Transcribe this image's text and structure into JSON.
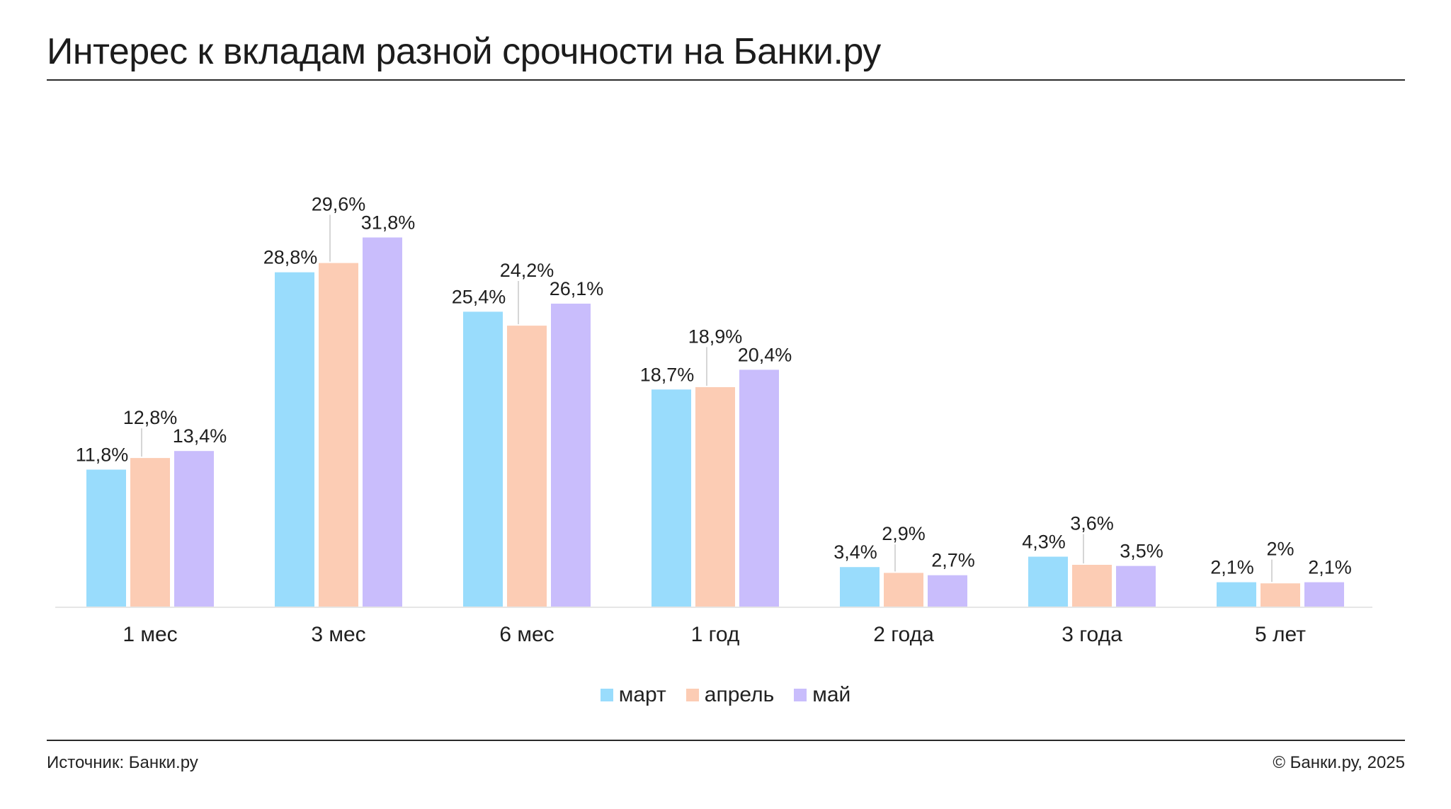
{
  "title": "Интерес к вкладам разной срочности на Банки.ру",
  "footer": {
    "source": "Источник: Банки.ру",
    "copyright": "© Банки.ру, 2025"
  },
  "colors": {
    "март": "#99dcfc",
    "апрель": "#fcccb4",
    "май": "#c9bdfc",
    "text": "#1f1f1f",
    "leader_line": "#c8c8c8",
    "baseline": "#e6e6e6"
  },
  "legend": [
    {
      "label": "март",
      "color": "#99dcfc"
    },
    {
      "label": "апрель",
      "color": "#fcccb4"
    },
    {
      "label": "май",
      "color": "#c9bdfc"
    }
  ],
  "chart_data": {
    "type": "bar",
    "title": "Интерес к вкладам разной срочности на Банки.ру",
    "xlabel": "",
    "ylabel": "",
    "ylim": [
      0,
      35
    ],
    "grid": false,
    "legend_position": "bottom-center",
    "categories": [
      "1 мес",
      "3 мес",
      "6 мес",
      "1 год",
      "2 года",
      "3 года",
      "5 лет"
    ],
    "series": [
      {
        "name": "март",
        "color": "#99dcfc",
        "values": [
          11.8,
          28.8,
          25.4,
          18.7,
          3.4,
          4.3,
          2.1
        ],
        "labels": [
          "11,8%",
          "28,8%",
          "25,4%",
          "18,7%",
          "3,4%",
          "4,3%",
          "2,1%"
        ]
      },
      {
        "name": "апрель",
        "color": "#fcccb4",
        "values": [
          12.8,
          29.6,
          24.2,
          18.9,
          2.9,
          3.6,
          2.0
        ],
        "labels": [
          "12,8%",
          "29,6%",
          "24,2%",
          "18,9%",
          "2,9%",
          "3,6%",
          "2%"
        ]
      },
      {
        "name": "май",
        "color": "#c9bdfc",
        "values": [
          13.4,
          31.8,
          26.1,
          20.4,
          2.7,
          3.5,
          2.1
        ],
        "labels": [
          "13,4%",
          "31,8%",
          "26,1%",
          "20,4%",
          "2,7%",
          "3,5%",
          "2,1%"
        ]
      }
    ]
  }
}
